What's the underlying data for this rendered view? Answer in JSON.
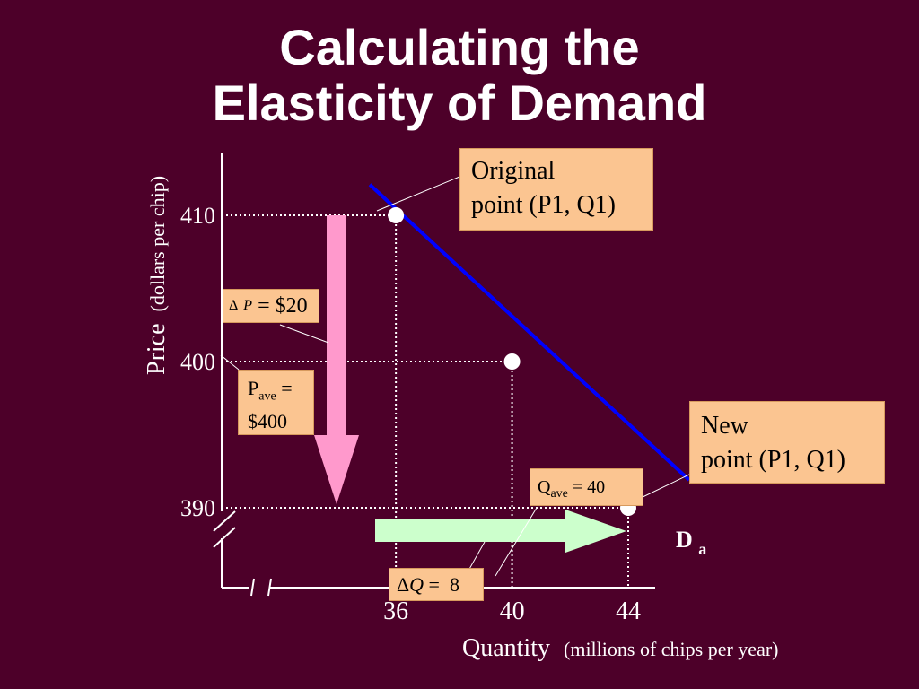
{
  "title": {
    "line1": "Calculating the",
    "line2": "Elasticity of Demand"
  },
  "chart_data": {
    "type": "line",
    "series": [
      {
        "name": "Da",
        "points": [
          [
            35.1,
            412.1
          ],
          [
            46.1,
            391.9
          ]
        ]
      }
    ],
    "points": [
      {
        "x": 36,
        "y": 410
      },
      {
        "x": 40,
        "y": 400
      },
      {
        "x": 44,
        "y": 390
      }
    ],
    "x_ticks": [
      "36",
      "40",
      "44"
    ],
    "y_ticks": [
      "410",
      "400",
      "390"
    ],
    "xlim": [
      30,
      45
    ],
    "ylim": [
      385,
      414
    ],
    "xlabel": "Quantity",
    "xlabel_note": "(millions of chips per year)",
    "ylabel": "Price",
    "ylabel_note": "(dollars per chip)",
    "curve_label": {
      "main": "D",
      "sub": "a"
    },
    "axis_break": true
  },
  "annotations": {
    "original": {
      "line1": "Original",
      "line2": "point (P1, Q1)"
    },
    "new_point": {
      "line1": "New",
      "line2": "point (P1, Q1)"
    },
    "delta_p": {
      "symbol": "Δ",
      "var": "P",
      "text": " = $20"
    },
    "p_ave": {
      "main": "P",
      "sub": "ave",
      "eq": " =",
      "value": "$400"
    },
    "q_ave": {
      "main": "Q",
      "sub": "ave",
      "text": " = 40"
    },
    "delta_q": {
      "symbol": "Δ",
      "var": "Q",
      "text": " =  8"
    }
  },
  "colors": {
    "background": "#4d0029",
    "demand_line": "#0000ff",
    "price_arrow": "#ff99cc",
    "quantity_arrow": "#ccffcc",
    "callout_fill": "#fbc591",
    "axis": "#ffffff"
  }
}
